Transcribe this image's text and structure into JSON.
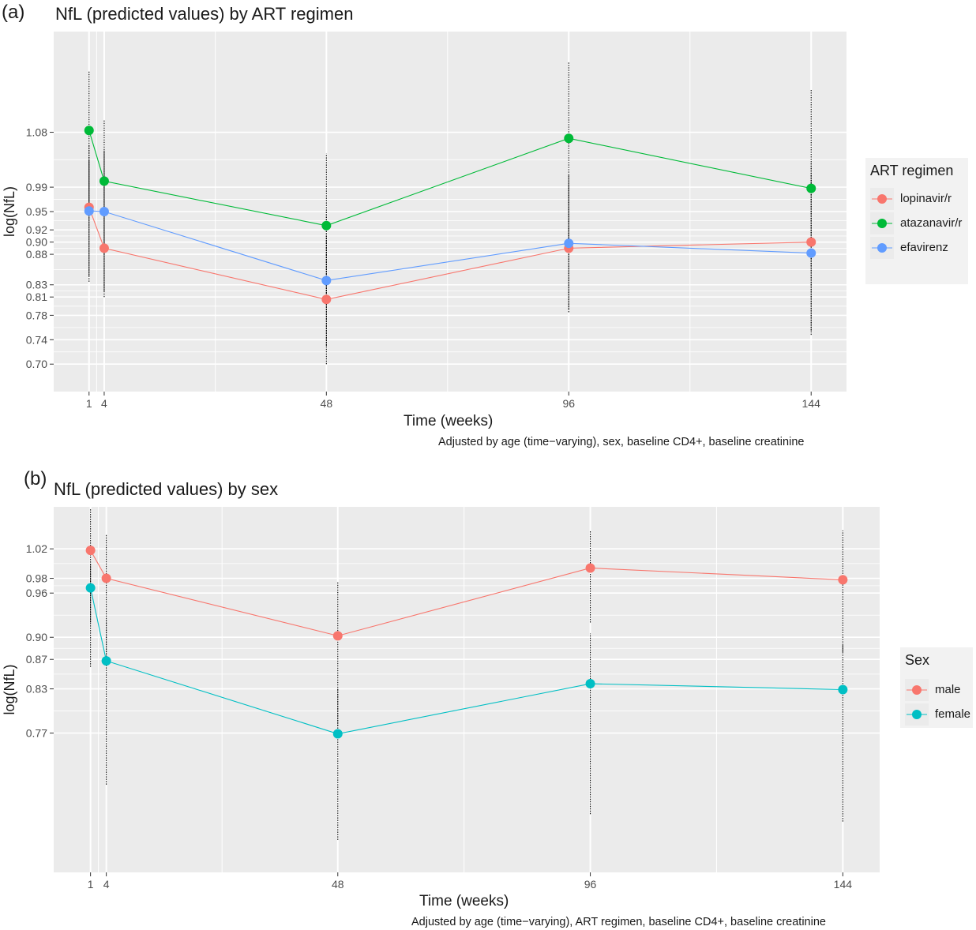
{
  "figure": {
    "panels": [
      {
        "letter": "(a)",
        "title": "NfL (predicted values) by ART regimen",
        "xlabel": "Time (weeks)",
        "ylabel": "log(NfL)",
        "caption": "Adjusted by age (time−varying), sex, baseline CD4+, baseline creatinine",
        "legend_title": "ART regimen"
      },
      {
        "letter": "(b)",
        "title": "NfL (predicted values) by sex",
        "xlabel": "Time (weeks)",
        "ylabel": "log(NfL)",
        "caption": "Adjusted by age (time−varying), ART regimen, baseline CD4+, baseline creatinine",
        "legend_title": "Sex"
      }
    ]
  },
  "chart_data": [
    {
      "type": "line",
      "title": "NfL (predicted values) by ART regimen",
      "xlabel": "Time (weeks)",
      "ylabel": "log(NfL)",
      "x_ticks": [
        1,
        4,
        48,
        96,
        144
      ],
      "y_ticks": [
        0.7,
        0.74,
        0.78,
        0.81,
        0.83,
        0.88,
        0.9,
        0.92,
        0.95,
        0.99,
        1.08
      ],
      "y_tick_labels": [
        "0.70",
        "0.74",
        "0.78",
        "0.81",
        "0.83",
        "0.88",
        "0.90",
        "0.92",
        "0.95",
        "0.99",
        "1.08"
      ],
      "xlim": [
        -6,
        151
      ],
      "ylim": [
        0.655,
        1.245
      ],
      "grid": true,
      "legend_position": "right",
      "series": [
        {
          "name": "lopinavir/r",
          "color": "#F8766D",
          "x": [
            1,
            4,
            48,
            96,
            144
          ],
          "y": [
            0.957,
            0.89,
            0.806,
            0.89,
            0.9
          ],
          "err_low": [
            0.845,
            0.81,
            0.7,
            0.785,
            0.748
          ],
          "err_high": [
            1.035,
            0.995,
            0.91,
            0.995,
            1.03
          ]
        },
        {
          "name": "atazanavir/r",
          "color": "#00BA38",
          "x": [
            1,
            4,
            48,
            96,
            144
          ],
          "y": [
            1.083,
            1.0,
            0.927,
            1.07,
            0.988
          ],
          "err_low": [
            0.96,
            0.88,
            0.8,
            0.905,
            0.86
          ],
          "err_high": [
            1.18,
            1.1,
            1.045,
            1.195,
            1.15
          ]
        },
        {
          "name": "efavirenz",
          "color": "#619CFF",
          "x": [
            1,
            4,
            48,
            96,
            144
          ],
          "y": [
            0.951,
            0.95,
            0.837,
            0.898,
            0.882
          ],
          "err_low": [
            0.835,
            0.82,
            0.73,
            0.79,
            0.755
          ],
          "err_high": [
            1.06,
            1.05,
            0.95,
            1.01,
            1.01
          ]
        }
      ]
    },
    {
      "type": "line",
      "title": "NfL (predicted values) by sex",
      "xlabel": "Time (weeks)",
      "ylabel": "log(NfL)",
      "x_ticks": [
        1,
        4,
        48,
        96,
        144
      ],
      "y_ticks": [
        0.77,
        0.83,
        0.87,
        0.9,
        0.96,
        0.98,
        1.02
      ],
      "y_tick_labels": [
        "0.77",
        "0.83",
        "0.87",
        "0.90",
        "0.96",
        "0.98",
        "1.02"
      ],
      "xlim": [
        -6,
        151
      ],
      "ylim": [
        0.581,
        1.077
      ],
      "grid": true,
      "legend_position": "right",
      "series": [
        {
          "name": "male",
          "color": "#F8766D",
          "x": [
            1,
            4,
            48,
            96,
            144
          ],
          "y": [
            1.018,
            0.98,
            0.902,
            0.994,
            0.978
          ],
          "err_low": [
            0.86,
            0.87,
            0.78,
            0.92,
            0.88
          ],
          "err_high": [
            1.075,
            1.04,
            0.975,
            1.045,
            1.045
          ]
        },
        {
          "name": "female",
          "color": "#00BFC4",
          "x": [
            1,
            4,
            48,
            96,
            144
          ],
          "y": [
            0.967,
            0.868,
            0.769,
            0.837,
            0.829
          ],
          "err_low": [
            0.92,
            0.7,
            0.625,
            0.66,
            0.65
          ],
          "err_high": [
            1.0,
            0.925,
            0.83,
            0.905,
            0.89
          ]
        }
      ]
    }
  ]
}
